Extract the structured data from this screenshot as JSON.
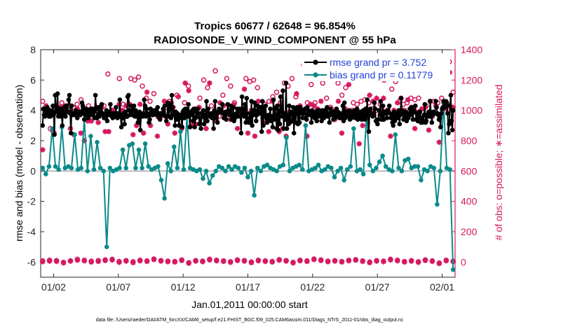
{
  "chart_data": {
    "type": "line",
    "title_line1": "Tropics 60677 / 62648 = 96.854%",
    "title_line2": "RADIOSONDE_V_WIND_COMPONENT @ 55 hPa",
    "ylabel_left": "rmse and bias (model - observation)",
    "ylabel_right": "# of obs: o=possible; ∗=assimilated",
    "xlabel": "Jan.01,2011 00:00:00 start",
    "footnote": "data file: /Users/raeder/DAI/ATM_forcXX/CAM6_setup/f.e21.FHIST_BGC.f09_025.CAM6assim.011/Diags_NTrS_2011-01/obs_diag_output.nc",
    "ylim_left": [
      -7,
      8
    ],
    "ylim_right": [
      -100,
      1400
    ],
    "xlim": [
      0,
      32
    ],
    "left_ticks": [
      -6,
      -4,
      -2,
      0,
      2,
      4,
      6,
      8
    ],
    "left_tick_labels": [
      "-6",
      "-4",
      "-2",
      "0",
      "2",
      "4",
      "6",
      "8"
    ],
    "right_ticks": [
      0,
      200,
      400,
      600,
      800,
      1000,
      1200,
      1400
    ],
    "right_tick_labels": [
      "0",
      "200",
      "400",
      "600",
      "800",
      "1000",
      "1200",
      "1400"
    ],
    "x_ticks": [
      1,
      6,
      11,
      16,
      21,
      26,
      31
    ],
    "x_tick_labels": [
      "01/02",
      "01/07",
      "01/12",
      "01/17",
      "01/22",
      "01/27",
      "02/01"
    ],
    "colors": {
      "rmse": "#000000",
      "bias": "#0b8a8a",
      "obs": "#d6185f",
      "zero_line": "#b8b8b8",
      "right_axis": "#d6185f",
      "legend_text": "#1f3fd6"
    },
    "series": [
      {
        "name": "rmse grand pr = 3.752",
        "axis": "left",
        "marker": "filled-circle",
        "values": [
          3.0,
          4.1,
          3.7,
          3.6,
          4.0,
          3.7,
          4.2,
          3.8,
          3.6,
          4.0,
          3.6,
          3.9,
          3.9,
          4.3,
          3.7,
          2.4,
          5.0,
          3.9,
          4.0,
          5.1,
          3.6,
          3.8,
          4.1,
          3.6,
          3.9,
          3.0,
          3.9,
          4.2,
          3.7,
          3.6,
          4.3,
          3.9,
          3.9,
          4.7,
          5.0,
          3.8,
          2.5,
          4.3,
          3.7,
          3.8,
          3.7,
          3.8,
          4.0,
          3.9,
          3.5,
          3.8,
          3.7,
          3.9,
          3.7,
          3.8,
          4.5,
          4.3,
          4.0,
          3.4,
          3.7,
          4.1,
          3.9,
          4.0,
          3.5,
          3.8,
          3.7,
          4.1,
          3.7,
          4.1,
          3.7,
          3.9,
          3.5,
          5.0,
          4.1,
          3.5,
          3.6,
          4.2,
          3.6,
          3.9,
          3.8,
          4.4,
          3.8,
          3.7,
          3.5,
          3.6,
          3.8,
          4.0,
          3.3,
          3.9,
          3.8,
          3.7,
          4.4,
          3.8,
          3.6,
          3.5,
          3.8,
          3.6,
          3.7,
          4.2,
          3.6,
          3.5,
          3.8,
          3.8,
          4.7,
          3.6,
          2.9,
          3.7,
          3.5,
          3.8,
          3.1,
          3.9,
          3.7,
          3.6,
          4.9,
          5.0,
          4.0,
          3.7,
          3.8,
          4.3,
          3.7,
          4.0,
          4.3,
          3.6,
          4.0,
          3.8,
          3.6,
          3.2,
          3.5,
          3.9,
          2.7,
          3.6,
          3.7,
          3.6,
          3.8,
          4.7,
          4.3,
          3.6,
          4.1,
          3.8,
          3.7,
          3.2,
          3.4,
          4.1,
          3.9,
          3.7,
          3.7,
          3.9,
          4.0,
          4.0,
          3.8,
          3.7,
          4.2,
          3.8,
          3.5,
          3.4,
          3.8,
          3.7,
          3.8,
          4.1,
          3.7,
          4.3,
          3.6,
          3.3,
          3.6,
          4.5,
          3.6,
          4.2,
          4.4,
          3.5,
          5.0,
          4.2,
          3.7,
          3.9,
          3.0,
          3.9,
          3.4,
          3.8,
          3.6,
          3.0,
          3.5,
          3.7,
          3.5,
          2.9,
          3.9,
          4.0,
          3.5,
          4.1,
          4.1,
          3.8,
          3.6,
          4.4,
          3.8,
          2.9,
          3.7,
          3.9,
          4.0,
          3.3,
          4.1,
          2.9,
          3.5,
          3.9,
          3.6,
          4.1,
          3.8,
          3.1,
          3.5,
          2.8,
          3.8,
          3.6,
          4.0,
          3.1,
          3.5,
          3.7,
          4.6,
          3.3,
          4.1,
          3.8,
          3.6,
          3.7,
          3.8,
          3.5,
          3.8,
          2.8,
          4.0,
          4.6,
          3.5,
          3.8,
          3.2,
          3.9,
          4.1,
          3.9,
          4.0,
          3.9,
          4.4,
          3.8,
          3.5,
          3.7,
          3.9,
          3.4,
          3.8,
          4.4,
          3.9,
          3.7,
          4.0,
          4.3,
          3.4,
          3.6,
          4.2,
          3.3,
          3.5,
          3.7,
          3.8,
          4.1,
          3.6,
          4.0,
          4.1,
          3.6,
          2.5,
          4.9,
          3.8,
          4.1,
          3.6,
          4.4,
          3.2,
          4.8,
          3.5,
          3.4,
          3.2,
          3.8,
          3.3,
          4.6,
          3.0,
          4.0,
          3.7,
          4.5,
          4.0,
          3.3,
          3.7,
          4.3,
          3.8,
          3.8,
          4.2,
          4.2,
          2.6,
          4.6,
          3.0,
          4.2,
          3.7,
          4.3,
          3.5,
          3.2,
          3.4,
          3.7,
          3.6,
          4.1,
          3.3,
          3.6,
          2.9,
          4.7,
          3.4,
          4.1,
          3.7,
          2.8,
          4.3,
          2.7,
          4.0,
          3.1,
          4.9,
          3.9,
          3.6,
          5.3,
          2.8,
          3.8,
          3.4,
          5.8,
          2.8,
          3.7,
          3.1,
          4.3,
          3.2,
          3.9,
          3.8,
          3.3,
          4.2,
          2.5,
          4.0,
          3.2,
          4.0,
          4.2,
          3.1,
          4.0,
          3.2,
          4.2,
          3.8,
          4.0,
          3.5,
          3.9,
          3.8,
          4.1,
          3.5,
          3.4,
          4.2,
          4.0,
          3.7,
          3.8,
          3.9,
          3.2,
          4.0,
          3.7,
          3.9,
          3.5,
          3.8,
          3.7,
          3.3,
          4.0,
          3.6,
          4.0,
          3.6,
          3.9,
          3.3,
          4.0,
          3.8,
          3.5,
          4.0,
          3.6,
          3.7,
          4.2,
          3.6,
          3.8,
          3.2,
          4.1,
          3.7,
          3.9,
          3.7,
          3.4,
          3.9,
          3.5,
          3.9,
          4.1,
          3.6,
          3.9,
          3.8,
          3.5,
          3.8,
          3.5,
          3.6,
          4.3,
          3.3,
          4.5,
          3.5,
          3.9,
          3.9,
          3.6,
          3.6,
          4.0,
          3.4,
          3.9,
          3.5,
          3.6,
          3.7,
          3.8,
          4.0,
          3.5,
          3.7,
          4.1,
          3.4,
          3.8,
          3.5,
          3.9,
          3.6,
          3.4,
          3.8,
          4.0,
          3.6,
          3.4,
          4.1,
          3.6,
          4.7,
          3.6,
          2.6,
          3.9,
          4.1,
          3.7,
          3.7,
          3.6,
          3.8,
          4.5,
          4.1,
          3.3,
          3.3,
          3.1,
          3.4,
          4.0,
          3.7,
          4.6,
          3.4,
          3.4,
          4.3,
          3.4,
          3.9,
          3.8,
          3.8,
          3.5,
          4.0,
          3.9,
          4.3,
          3.8,
          3.5,
          3.7,
          3.2,
          3.0,
          3.9,
          3.3,
          3.5,
          3.6,
          3.8,
          3.5,
          4.0,
          3.1,
          3.7,
          4.8,
          4.0,
          3.8,
          3.4,
          3.5,
          3.8,
          3.9,
          3.3,
          3.8,
          3.5,
          3.7,
          4.1,
          3.7,
          4.2,
          3.8,
          3.4,
          4.0,
          3.9,
          4.3,
          3.4,
          3.8,
          3.3,
          3.5,
          3.8,
          3.9,
          3.2,
          3.5,
          3.2,
          3.3,
          3.7,
          4.4,
          3.2,
          3.3,
          3.7,
          3.6,
          3.9,
          3.6,
          4.6,
          3.8,
          3.2,
          3.7,
          3.9,
          3.8,
          3.8,
          4.6,
          4.2,
          3.8,
          3.7,
          3.4,
          3.5,
          2.9,
          3.8,
          4.1,
          4.2,
          4.6,
          4.2,
          4.5,
          4.6,
          4.5,
          3.8,
          2.5,
          3.1,
          4.3,
          5.0,
          3.3,
          2.7,
          4.0
        ]
      },
      {
        "name": "bias grand pr = 0.11779",
        "axis": "left",
        "marker": "filled-circle",
        "values": [
          0.2,
          -0.2,
          0.3,
          2.8,
          0.3,
          0.1,
          2.9,
          0.2,
          0.3,
          0.2,
          2.4,
          0.1,
          0.2,
          3.4,
          0.0,
          2.3,
          0.1,
          1.9,
          0.2,
          0.0,
          -5.0,
          0.2,
          0.0,
          0.1,
          0.2,
          1.4,
          0.2,
          1.7,
          1.8,
          0.2,
          1.4,
          0.2,
          1.8,
          0.3,
          0.1,
          0.2,
          0.3,
          -0.6,
          -1.8,
          0.5,
          0.0,
          1.6,
          0.2,
          2.6,
          0.1,
          3.6,
          0.2,
          0.1,
          0.0,
          0.1,
          -0.5,
          0.0,
          -0.8,
          -0.3,
          0.0,
          0.3,
          0.2,
          0.0,
          0.3,
          0.1,
          0.3,
          0.2,
          -0.1,
          0.2,
          -0.4,
          0.0,
          -1.6,
          0.2,
          0.0,
          0.3,
          0.4,
          0.2,
          0.1,
          0.0,
          0.3,
          0.4,
          2.2,
          0.0,
          0.2,
          0.3,
          0.4,
          0.1,
          3.0,
          0.0,
          0.1,
          0.2,
          0.4,
          0.0,
          0.1,
          0.3,
          0.2,
          -0.4,
          0.0,
          0.2,
          -0.6,
          0.1,
          0.3,
          2.8,
          0.0,
          0.1,
          -0.2,
          3.7,
          0.4,
          0.0,
          0.2,
          0.6,
          1.0,
          0.3,
          0.1,
          0.0,
          2.4,
          0.2,
          0.0,
          0.7,
          0.8,
          0.2,
          0.3,
          0.3,
          -0.6,
          0.1,
          0.0,
          0.3,
          0.2,
          -2.2,
          0.0,
          4.5,
          0.2,
          0.1,
          -6.5
        ]
      },
      {
        "name": "obs possible",
        "axis": "right",
        "marker": "open-circle",
        "values": [
          1060,
          1020,
          880,
          850,
          1020,
          1050,
          1030,
          1030,
          1020,
          1040,
          1070,
          1000,
          1030,
          980,
          1020,
          1020,
          1030,
          1240,
          990,
          980,
          1210,
          1040,
          960,
          1210,
          1200,
          1220,
          1160,
          1080,
          1060,
          1110,
          960,
          980,
          1020,
          1060,
          1020,
          1100,
          900,
          1050,
          1160,
          990,
          1010,
          1080,
          1200,
          1150,
          1030,
          1260,
          960,
          1100,
          1210,
          1160,
          1050,
          980,
          1010,
          1210,
          1190,
          1200,
          1150,
          1000,
          1040,
          1060,
          1090,
          1120,
          1050,
          1180,
          1160,
          1210,
          1090,
          1010,
          1300,
          1050,
          1170,
          1050,
          1250,
          1180,
          1080,
          1020,
          1210,
          1180,
          1100,
          1150,
          990,
          1050,
          1040,
          1060,
          1070,
          1050,
          1010,
          1000,
          1040,
          1200,
          1240,
          1140,
          1190,
          1060,
          1040,
          1050,
          1080,
          1070,
          1080,
          1270,
          1030,
          1060,
          1060,
          1050,
          1080,
          1020,
          1320,
          1120
        ]
      },
      {
        "name": "obs assimilated",
        "axis": "right",
        "marker": "asterisk",
        "values": [
          740,
          1030,
          1000,
          860,
          990,
          1020,
          1010,
          990,
          880,
          840,
          1010,
          850,
          800,
          930,
          930,
          1010,
          920,
          1020,
          860,
          860,
          1000,
          970,
          1040,
          1000,
          1030,
          1040,
          840,
          900,
          1040,
          850,
          1120,
          900,
          990,
          830,
          960,
          1060,
          910,
          1050,
          850,
          1090,
          880,
          1180,
          1130,
          900,
          910,
          1020,
          990,
          880,
          1180,
          970,
          930,
          1050,
          1030,
          990,
          940,
          1040,
          880,
          990,
          1140,
          850,
          1000,
          830,
          1060,
          1020,
          920,
          860,
          1060,
          1020,
          860,
          880,
          830,
          990,
          940,
          1110,
          1030,
          1000,
          830,
          1040,
          1030,
          1010,
          1060,
          960,
          980,
          1010,
          940,
          1060,
          850,
          1010,
          1170,
          1000,
          980,
          780,
          900,
          1010,
          1100,
          1060,
          1080,
          1000,
          1080,
          1000,
          830,
          1000,
          1050,
          1080,
          1000,
          1070,
          1020,
          880,
          990,
          1010,
          1020,
          870,
          960,
          1030,
          790,
          1000,
          1010,
          1250,
          1020
        ]
      },
      {
        "name": "obs near-zero possible",
        "axis": "right",
        "marker": "open-circle",
        "values": [
          8,
          12,
          10,
          -2,
          8,
          18,
          12,
          6,
          10,
          14,
          18,
          4,
          10,
          2,
          12,
          8,
          20,
          10,
          6,
          4,
          14,
          -4,
          10,
          6,
          18,
          12,
          8,
          2,
          14,
          10,
          0,
          12,
          8,
          4,
          16,
          10,
          -2,
          12,
          8,
          20,
          14,
          6,
          10,
          4,
          12,
          16,
          8,
          0,
          10,
          6,
          18,
          12,
          4,
          10,
          2,
          14,
          8,
          -6,
          12,
          6
        ]
      },
      {
        "name": "obs near-zero assimilated",
        "axis": "right",
        "marker": "asterisk",
        "values": [
          2,
          6,
          4,
          -6,
          6,
          12,
          8,
          0,
          4,
          10,
          14,
          -2,
          6,
          -4,
          8,
          4,
          16,
          6,
          2,
          0,
          10,
          -8,
          6,
          2,
          14,
          8,
          4,
          -2,
          10,
          6,
          -4,
          8,
          4,
          0,
          12,
          6,
          -6,
          8,
          4,
          16,
          10,
          2,
          6,
          0,
          8,
          12,
          4,
          -4,
          6,
          2,
          14,
          8,
          0,
          6,
          -2,
          10,
          4,
          -10,
          8,
          2
        ]
      }
    ]
  }
}
